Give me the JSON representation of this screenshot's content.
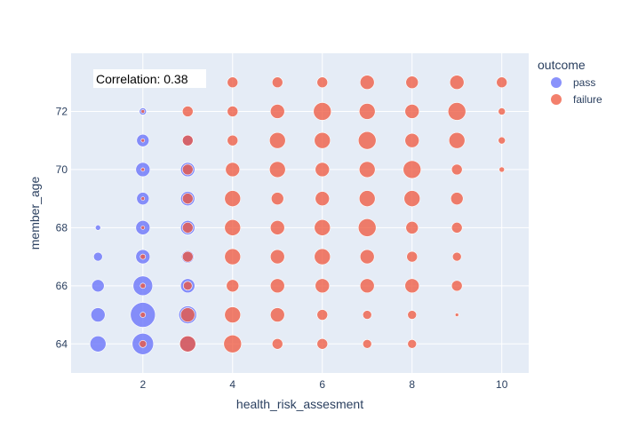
{
  "chart_data": {
    "type": "scatter",
    "xlabel": "health_risk_assesment",
    "ylabel": "member_age",
    "xlim": [
      0.4,
      10.6
    ],
    "ylim": [
      63,
      74
    ],
    "x_ticks": [
      2,
      4,
      6,
      8,
      10
    ],
    "y_ticks": [
      64,
      66,
      68,
      70,
      72
    ],
    "grid": true,
    "legend": {
      "title": "outcome",
      "position": "right",
      "entries": [
        "pass",
        "failure"
      ]
    },
    "annotation": "Correlation: 0.38",
    "colors": {
      "pass": "#636efa",
      "failure": "#ef553b",
      "plot_bg": "#e5ecf6",
      "grid": "#ffffff",
      "text": "#2a3f5f"
    },
    "series": [
      {
        "name": "pass",
        "points": [
          {
            "x": 1,
            "y": 64,
            "size": 9
          },
          {
            "x": 1,
            "y": 65,
            "size": 8
          },
          {
            "x": 1,
            "y": 66,
            "size": 7
          },
          {
            "x": 1,
            "y": 67,
            "size": 5
          },
          {
            "x": 1,
            "y": 68,
            "size": 3
          },
          {
            "x": 2,
            "y": 64,
            "size": 12
          },
          {
            "x": 2,
            "y": 65,
            "size": 14
          },
          {
            "x": 2,
            "y": 66,
            "size": 11
          },
          {
            "x": 2,
            "y": 67,
            "size": 8
          },
          {
            "x": 2,
            "y": 68,
            "size": 8
          },
          {
            "x": 2,
            "y": 69,
            "size": 7
          },
          {
            "x": 2,
            "y": 70,
            "size": 8
          },
          {
            "x": 2,
            "y": 71,
            "size": 7
          },
          {
            "x": 2,
            "y": 72,
            "size": 4
          },
          {
            "x": 3,
            "y": 64,
            "size": 9
          },
          {
            "x": 3,
            "y": 65,
            "size": 10
          },
          {
            "x": 3,
            "y": 66,
            "size": 8
          },
          {
            "x": 3,
            "y": 67,
            "size": 7
          },
          {
            "x": 3,
            "y": 68,
            "size": 8
          },
          {
            "x": 3,
            "y": 69,
            "size": 8
          },
          {
            "x": 3,
            "y": 70,
            "size": 8
          },
          {
            "x": 3,
            "y": 71,
            "size": 6
          }
        ]
      },
      {
        "name": "failure",
        "points": [
          {
            "x": 2,
            "y": 64,
            "size": 4
          },
          {
            "x": 2,
            "y": 65,
            "size": 3
          },
          {
            "x": 2,
            "y": 66,
            "size": 3
          },
          {
            "x": 2,
            "y": 67,
            "size": 3
          },
          {
            "x": 2,
            "y": 68,
            "size": 2
          },
          {
            "x": 2,
            "y": 69,
            "size": 2
          },
          {
            "x": 2,
            "y": 70,
            "size": 2
          },
          {
            "x": 2,
            "y": 71,
            "size": 2
          },
          {
            "x": 2,
            "y": 72,
            "size": 2
          },
          {
            "x": 3,
            "y": 64,
            "size": 9
          },
          {
            "x": 3,
            "y": 65,
            "size": 8
          },
          {
            "x": 3,
            "y": 66,
            "size": 5
          },
          {
            "x": 3,
            "y": 67,
            "size": 6
          },
          {
            "x": 3,
            "y": 68,
            "size": 6
          },
          {
            "x": 3,
            "y": 69,
            "size": 6
          },
          {
            "x": 3,
            "y": 70,
            "size": 6
          },
          {
            "x": 3,
            "y": 71,
            "size": 6
          },
          {
            "x": 3,
            "y": 72,
            "size": 6
          },
          {
            "x": 4,
            "y": 64,
            "size": 10
          },
          {
            "x": 4,
            "y": 65,
            "size": 9
          },
          {
            "x": 4,
            "y": 66,
            "size": 7
          },
          {
            "x": 4,
            "y": 67,
            "size": 9
          },
          {
            "x": 4,
            "y": 68,
            "size": 9
          },
          {
            "x": 4,
            "y": 69,
            "size": 9
          },
          {
            "x": 4,
            "y": 70,
            "size": 8
          },
          {
            "x": 4,
            "y": 71,
            "size": 6
          },
          {
            "x": 4,
            "y": 72,
            "size": 6
          },
          {
            "x": 4,
            "y": 73,
            "size": 6
          },
          {
            "x": 5,
            "y": 64,
            "size": 6
          },
          {
            "x": 5,
            "y": 65,
            "size": 8
          },
          {
            "x": 5,
            "y": 66,
            "size": 8
          },
          {
            "x": 5,
            "y": 67,
            "size": 8
          },
          {
            "x": 5,
            "y": 68,
            "size": 8
          },
          {
            "x": 5,
            "y": 69,
            "size": 7
          },
          {
            "x": 5,
            "y": 70,
            "size": 9
          },
          {
            "x": 5,
            "y": 71,
            "size": 9
          },
          {
            "x": 5,
            "y": 72,
            "size": 8
          },
          {
            "x": 5,
            "y": 73,
            "size": 6
          },
          {
            "x": 6,
            "y": 64,
            "size": 6
          },
          {
            "x": 6,
            "y": 65,
            "size": 6
          },
          {
            "x": 6,
            "y": 66,
            "size": 8
          },
          {
            "x": 6,
            "y": 67,
            "size": 9
          },
          {
            "x": 6,
            "y": 68,
            "size": 9
          },
          {
            "x": 6,
            "y": 69,
            "size": 8
          },
          {
            "x": 6,
            "y": 70,
            "size": 8
          },
          {
            "x": 6,
            "y": 71,
            "size": 9
          },
          {
            "x": 6,
            "y": 72,
            "size": 10
          },
          {
            "x": 6,
            "y": 73,
            "size": 6
          },
          {
            "x": 7,
            "y": 64,
            "size": 5
          },
          {
            "x": 7,
            "y": 65,
            "size": 5
          },
          {
            "x": 7,
            "y": 66,
            "size": 8
          },
          {
            "x": 7,
            "y": 67,
            "size": 8
          },
          {
            "x": 7,
            "y": 68,
            "size": 10
          },
          {
            "x": 7,
            "y": 69,
            "size": 9
          },
          {
            "x": 7,
            "y": 70,
            "size": 9
          },
          {
            "x": 7,
            "y": 71,
            "size": 10
          },
          {
            "x": 7,
            "y": 72,
            "size": 9
          },
          {
            "x": 7,
            "y": 73,
            "size": 8
          },
          {
            "x": 8,
            "y": 64,
            "size": 5
          },
          {
            "x": 8,
            "y": 65,
            "size": 5
          },
          {
            "x": 8,
            "y": 66,
            "size": 8
          },
          {
            "x": 8,
            "y": 67,
            "size": 6
          },
          {
            "x": 8,
            "y": 68,
            "size": 7
          },
          {
            "x": 8,
            "y": 69,
            "size": 9
          },
          {
            "x": 8,
            "y": 70,
            "size": 10
          },
          {
            "x": 8,
            "y": 71,
            "size": 8
          },
          {
            "x": 8,
            "y": 72,
            "size": 8
          },
          {
            "x": 8,
            "y": 73,
            "size": 7
          },
          {
            "x": 9,
            "y": 65,
            "size": 2
          },
          {
            "x": 9,
            "y": 66,
            "size": 6
          },
          {
            "x": 9,
            "y": 67,
            "size": 5
          },
          {
            "x": 9,
            "y": 68,
            "size": 6
          },
          {
            "x": 9,
            "y": 69,
            "size": 7
          },
          {
            "x": 9,
            "y": 70,
            "size": 6
          },
          {
            "x": 9,
            "y": 71,
            "size": 9
          },
          {
            "x": 9,
            "y": 72,
            "size": 10
          },
          {
            "x": 9,
            "y": 73,
            "size": 8
          },
          {
            "x": 10,
            "y": 70,
            "size": 3
          },
          {
            "x": 10,
            "y": 71,
            "size": 4
          },
          {
            "x": 10,
            "y": 72,
            "size": 4
          },
          {
            "x": 10,
            "y": 73,
            "size": 6
          }
        ]
      }
    ]
  }
}
